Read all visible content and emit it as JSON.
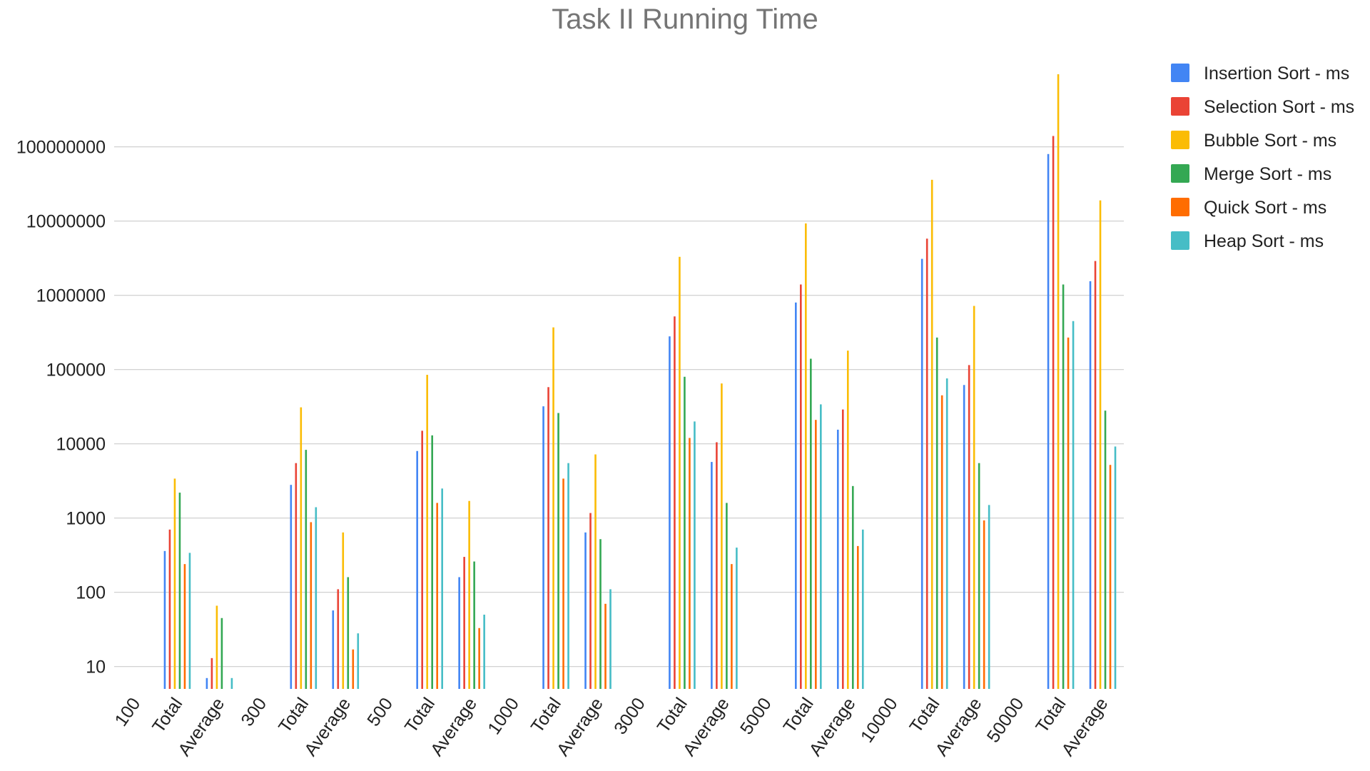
{
  "chart_data": {
    "type": "bar",
    "title": "Task II Running Time",
    "xlabel": "",
    "ylabel": "",
    "y_scale": "log",
    "ylim": [
      5,
      1000000000
    ],
    "y_ticks": [
      10,
      100,
      1000,
      10000,
      100000,
      1000000,
      10000000,
      100000000
    ],
    "grid": true,
    "legend_position": "right",
    "categories": [
      "100",
      "Total",
      "Average",
      "300",
      "Total",
      "Average",
      "500",
      "Total",
      "Average",
      "1000",
      "Total",
      "Average",
      "3000",
      "Total",
      "Average",
      "5000",
      "Total",
      "Average",
      "10000",
      "Total",
      "Average",
      "50000",
      "Total",
      "Average"
    ],
    "series": [
      {
        "name": "Insertion Sort - ms",
        "color": "#4285F4",
        "values": [
          null,
          360,
          7,
          null,
          2800,
          57,
          null,
          8000,
          160,
          null,
          32000,
          640,
          null,
          280000,
          5700,
          null,
          800000,
          15500,
          null,
          3100000,
          62000,
          null,
          80000000,
          1550000
        ]
      },
      {
        "name": "Selection Sort - ms",
        "color": "#EA4335",
        "values": [
          null,
          700,
          13,
          null,
          5500,
          110,
          null,
          15000,
          300,
          null,
          58000,
          1170,
          null,
          520000,
          10500,
          null,
          1400000,
          29000,
          null,
          5800000,
          115000,
          null,
          140000000,
          2900000
        ]
      },
      {
        "name": "Bubble Sort - ms",
        "color": "#FBBC04",
        "values": [
          null,
          3400,
          66,
          null,
          31000,
          640,
          null,
          85000,
          1700,
          null,
          370000,
          7200,
          null,
          3300000,
          65000,
          null,
          9300000,
          180000,
          null,
          36000000,
          720000,
          null,
          950000000,
          19000000
        ]
      },
      {
        "name": "Merge Sort - ms",
        "color": "#34A853",
        "values": [
          null,
          2200,
          45,
          null,
          8300,
          160,
          null,
          13000,
          260,
          null,
          26000,
          520,
          null,
          80000,
          1600,
          null,
          140000,
          2700,
          null,
          270000,
          5500,
          null,
          1400000,
          28000
        ]
      },
      {
        "name": "Quick Sort - ms",
        "color": "#FF6D01",
        "values": [
          null,
          240,
          null,
          null,
          880,
          17,
          null,
          1600,
          33,
          null,
          3400,
          70,
          null,
          12000,
          240,
          null,
          21000,
          420,
          null,
          45000,
          930,
          null,
          270000,
          5200
        ]
      },
      {
        "name": "Heap Sort - ms",
        "color": "#46BDC6",
        "values": [
          null,
          340,
          7,
          null,
          1400,
          28,
          null,
          2500,
          50,
          null,
          5500,
          110,
          null,
          20000,
          400,
          null,
          34000,
          700,
          null,
          76000,
          1500,
          null,
          450000,
          9200
        ]
      }
    ]
  }
}
